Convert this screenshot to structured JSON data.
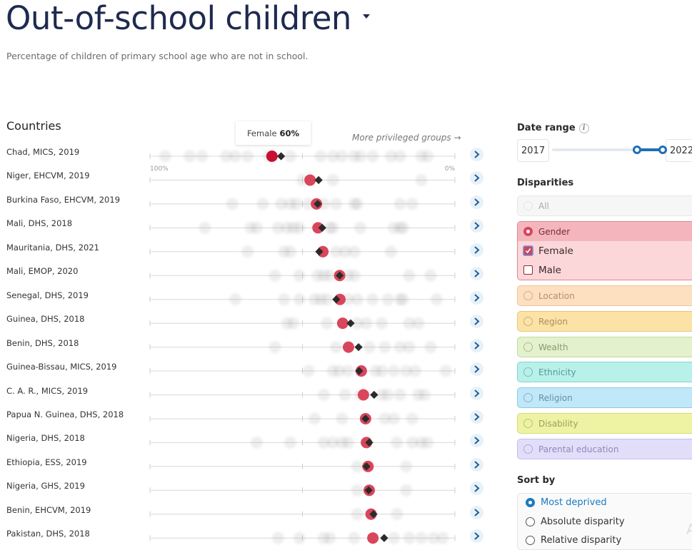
{
  "header": {
    "title": "Out-of-school children",
    "subtitle": "Percentage of children of primary school age who are not in school."
  },
  "chart_data": {
    "type": "scatter",
    "title": "Out-of-school children",
    "subtitle": "Percentage of children of primary school age who are not in school.",
    "column_header": "Countries",
    "direction_note": "More privileged groups →",
    "x_axis": {
      "left_label": "100%",
      "right_label": "0%",
      "range": [
        100,
        0
      ],
      "mid_tick": 50
    },
    "highlighted_series": {
      "name": "Female",
      "color": "#d9465b"
    },
    "average_marker": {
      "name": "Total",
      "shape": "diamond",
      "color": "#2b2b2b"
    },
    "tooltip": {
      "label": "Female",
      "value": "60%"
    },
    "rows": [
      {
        "label": "Chad, MICS, 2019",
        "female": 60,
        "total": 57,
        "others": [
          95,
          87,
          83,
          75,
          72,
          68,
          61,
          54,
          44,
          40,
          37,
          33,
          31,
          27,
          21,
          18,
          11,
          9
        ]
      },
      {
        "label": "Niger, EHCVM, 2019",
        "female": 47.5,
        "total": 44.7,
        "others": [
          50,
          40,
          11
        ]
      },
      {
        "label": "Burkina Faso, EHCVM, 2019",
        "female": 45.4,
        "total": 45,
        "others": [
          73,
          63,
          57,
          54,
          52,
          48,
          43,
          39,
          33,
          32,
          18,
          14
        ]
      },
      {
        "label": "Mali, DHS, 2018",
        "female": 44.9,
        "total": 43.5,
        "others": [
          82,
          67,
          65,
          58,
          55,
          53,
          51,
          41,
          40,
          31,
          20,
          18,
          17
        ]
      },
      {
        "label": "Mauritania, DHS, 2021",
        "female": 43.3,
        "total": 44.5,
        "others": [
          68,
          56,
          54,
          39,
          36,
          33,
          21
        ]
      },
      {
        "label": "Mali, EMOP, 2020",
        "female": 37.8,
        "total": 37.8,
        "others": [
          59,
          51,
          45,
          43,
          41,
          35,
          33,
          15,
          8
        ]
      },
      {
        "label": "Senegal, DHS, 2019",
        "female": 37.7,
        "total": 38.9,
        "others": [
          72,
          56,
          51,
          46,
          44,
          42,
          35,
          32,
          27,
          22,
          18,
          17,
          6
        ]
      },
      {
        "label": "Guinea, DHS, 2018",
        "female": 36.8,
        "total": 34.2,
        "others": [
          55,
          53,
          42,
          32,
          29,
          24,
          15,
          12
        ]
      },
      {
        "label": "Benin, DHS, 2018",
        "female": 34.9,
        "total": 31.6,
        "others": [
          59,
          39,
          28,
          23,
          18,
          15,
          8
        ]
      },
      {
        "label": "Guinea-Bissau, MICS, 2019",
        "female": 30.7,
        "total": 31.4,
        "others": [
          48,
          40,
          38,
          35,
          26,
          24,
          20,
          16,
          13,
          3
        ]
      },
      {
        "label": "C. A. R., MICS, 2019",
        "female": 30,
        "total": 26.5,
        "others": [
          43,
          36,
          31,
          24,
          22,
          18,
          12,
          10
        ]
      },
      {
        "label": "Papua N. Guinea, DHS, 2018",
        "female": 29.3,
        "total": 29.3,
        "others": [
          46,
          37,
          23,
          20,
          14
        ]
      },
      {
        "label": "Nigeria, DHS, 2018",
        "female": 29,
        "total": 28.1,
        "others": [
          65,
          54,
          43,
          40,
          37,
          35,
          19,
          14,
          11,
          9
        ]
      },
      {
        "label": "Ethiopia, ESS, 2019",
        "female": 28.5,
        "total": 29,
        "others": [
          32,
          16
        ]
      },
      {
        "label": "Nigeria, GHS, 2019",
        "female": 28.1,
        "total": 28.3,
        "others": [
          32,
          16
        ]
      },
      {
        "label": "Benin, EHCVM, 2019",
        "female": 27.5,
        "total": 26.7,
        "others": [
          32,
          19
        ]
      },
      {
        "label": "Pakistan, DHS, 2018",
        "female": 26.9,
        "total": 23.2,
        "others": [
          58,
          51,
          43,
          41,
          33,
          20,
          15,
          11,
          7,
          4
        ]
      }
    ]
  },
  "sidebar": {
    "date_range": {
      "label": "Date range",
      "info_icon": "info-icon",
      "start": "2017",
      "end": "2022",
      "min_year": 2010,
      "max_year": 2022
    },
    "disparities": {
      "label": "Disparities",
      "items": [
        {
          "label": "All",
          "state": "disabled",
          "bg": "#f6f6f6",
          "border": "#e8e8e8",
          "text": "#aaa"
        },
        {
          "label": "Gender",
          "state": "selected",
          "bg": "#f4b6bc",
          "border": "#d98a93",
          "text": "#7a2a34"
        },
        {
          "label": "Location",
          "state": "off",
          "bg": "#fde0c0",
          "border": "#ecc597",
          "text": "#b09070"
        },
        {
          "label": "Region",
          "state": "off",
          "bg": "#fde2a6",
          "border": "#e8c77c",
          "text": "#a89060"
        },
        {
          "label": "Wealth",
          "state": "off",
          "bg": "#e3f1cc",
          "border": "#c3da9f",
          "text": "#8a9a70"
        },
        {
          "label": "Ethnicity",
          "state": "off",
          "bg": "#b8f0ea",
          "border": "#85d5cd",
          "text": "#5a9a95"
        },
        {
          "label": "Religion",
          "state": "off",
          "bg": "#c0e8f8",
          "border": "#8dcbe6",
          "text": "#6690a8"
        },
        {
          "label": "Disability",
          "state": "off",
          "bg": "#eef3a3",
          "border": "#d6dd78",
          "text": "#9aa060"
        },
        {
          "label": "Parental education",
          "state": "off",
          "bg": "#e2defa",
          "border": "#c3bdee",
          "text": "#9088bb"
        }
      ],
      "gender_options": [
        {
          "label": "Female",
          "checked": true
        },
        {
          "label": "Male",
          "checked": false
        }
      ]
    },
    "sort_by": {
      "label": "Sort by",
      "options": [
        {
          "label": "Most deprived",
          "selected": true
        },
        {
          "label": "Absolute disparity",
          "selected": false
        },
        {
          "label": "Relative disparity",
          "selected": false
        }
      ]
    }
  },
  "clipped_glyph": "A"
}
